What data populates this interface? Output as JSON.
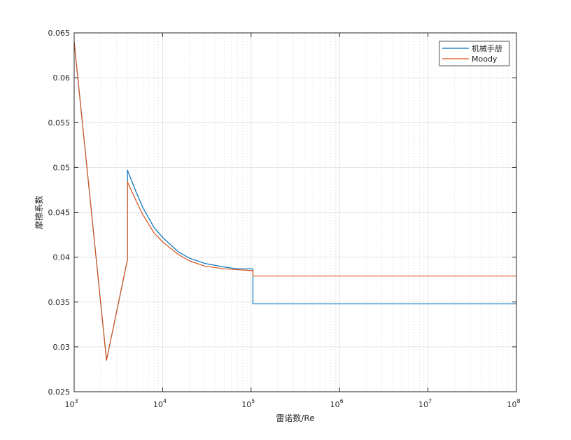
{
  "chart_data": {
    "type": "line",
    "xscale": "log",
    "xlabel": "雷诺数/Re",
    "ylabel": "摩擦系数",
    "xlim": [
      1000,
      100000000
    ],
    "ylim": [
      0.025,
      0.065
    ],
    "grid": true,
    "minor_grid_x": true,
    "legend_position": "top-right",
    "x_ticks": [
      1000,
      10000,
      100000,
      1000000,
      10000000,
      100000000
    ],
    "x_tick_labels": [
      {
        "base": "10",
        "exp": "3"
      },
      {
        "base": "10",
        "exp": "4"
      },
      {
        "base": "10",
        "exp": "5"
      },
      {
        "base": "10",
        "exp": "6"
      },
      {
        "base": "10",
        "exp": "7"
      },
      {
        "base": "10",
        "exp": "8"
      }
    ],
    "y_ticks": [
      0.025,
      0.03,
      0.035,
      0.04,
      0.045,
      0.05,
      0.055,
      0.06,
      0.065
    ],
    "y_tick_labels": [
      "0.025",
      "0.03",
      "0.035",
      "0.04",
      "0.045",
      "0.05",
      "0.055",
      "0.06",
      "0.065"
    ],
    "series": [
      {
        "name": "机械手册",
        "color": "#0072BD",
        "x": [
          1000,
          2320,
          2320,
          4000,
          4000,
          5000,
          6000,
          8000,
          10000,
          15000,
          20000,
          30000,
          50000,
          70000,
          105000,
          105000,
          110000,
          200000,
          1000000,
          10000000,
          100000000
        ],
        "y": [
          0.064,
          0.0285,
          0.0285,
          0.0397,
          0.0497,
          0.0473,
          0.0455,
          0.0433,
          0.0422,
          0.0406,
          0.0399,
          0.0393,
          0.0389,
          0.0387,
          0.0387,
          0.0348,
          0.0348,
          0.0348,
          0.0348,
          0.0348,
          0.0348
        ]
      },
      {
        "name": "Moody",
        "color": "#D95319",
        "x": [
          1000,
          2320,
          2320,
          4000,
          4000,
          5000,
          6000,
          8000,
          10000,
          15000,
          20000,
          30000,
          50000,
          70000,
          105000,
          105000,
          110000,
          200000,
          1000000,
          10000000,
          100000000
        ],
        "y": [
          0.064,
          0.0285,
          0.0285,
          0.0397,
          0.0484,
          0.0463,
          0.0447,
          0.0427,
          0.0417,
          0.0403,
          0.0396,
          0.039,
          0.0387,
          0.0386,
          0.0385,
          0.0379,
          0.0379,
          0.0379,
          0.0379,
          0.0379,
          0.0379
        ]
      }
    ]
  }
}
